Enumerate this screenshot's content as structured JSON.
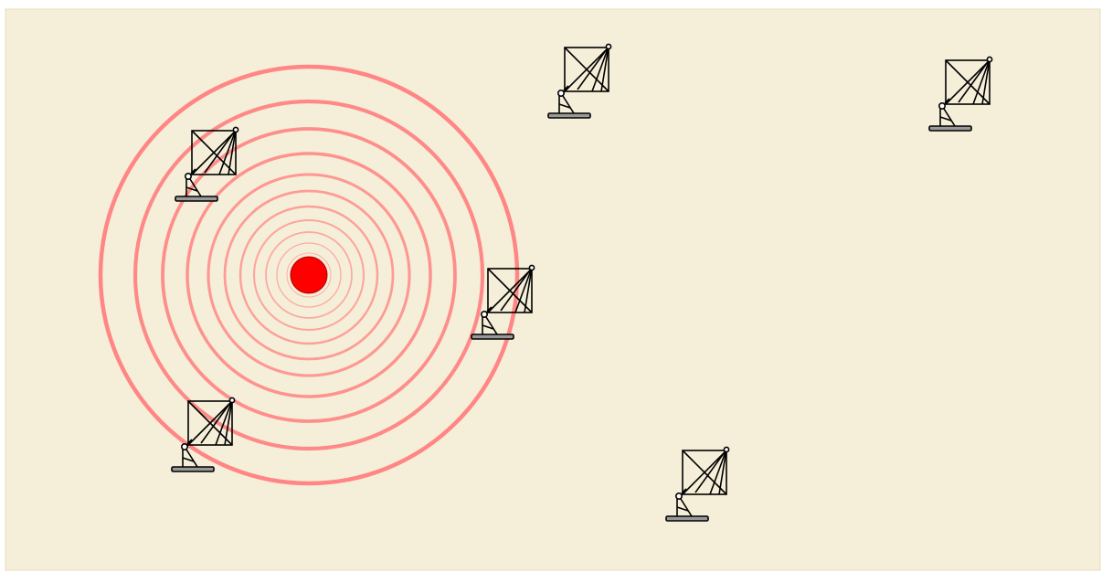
{
  "colors": {
    "background": "#f5eed8",
    "border": "#e6dcc0",
    "source": "#ff0000",
    "wave": "#ff8080",
    "antenna": "#000000",
    "antenna_base": "#999999"
  },
  "icons": {
    "source": "signal-source-dot",
    "wave": "wavefront-ring",
    "antenna": "dish-antenna-icon"
  },
  "source": {
    "label": "",
    "ring_count": 11
  },
  "antennas": [
    {
      "id": "antenna-1",
      "label": ""
    },
    {
      "id": "antenna-2",
      "label": ""
    },
    {
      "id": "antenna-3",
      "label": ""
    },
    {
      "id": "antenna-4",
      "label": ""
    },
    {
      "id": "antenna-5",
      "label": ""
    },
    {
      "id": "antenna-6",
      "label": ""
    }
  ]
}
